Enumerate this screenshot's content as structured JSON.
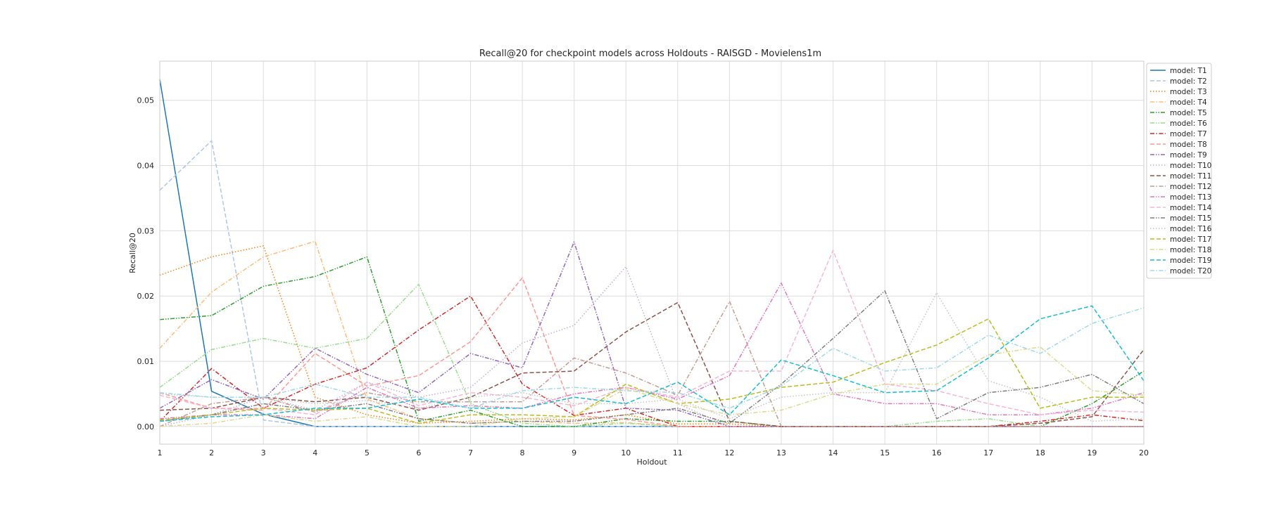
{
  "chart_data": {
    "type": "line",
    "title": "Recall@20 for checkpoint models across Holdouts - RAISGD - Movielens1m",
    "xlabel": "Holdout",
    "ylabel": "Recall@20",
    "x": [
      1,
      2,
      3,
      4,
      5,
      6,
      7,
      8,
      9,
      10,
      11,
      12,
      13,
      14,
      15,
      16,
      17,
      18,
      19,
      20
    ],
    "xlim": [
      1,
      20
    ],
    "ylim": [
      -0.0027,
      0.056
    ],
    "yticks": [
      0.0,
      0.01,
      0.02,
      0.03,
      0.04,
      0.05
    ],
    "ytick_labels": [
      "0.00",
      "0.01",
      "0.02",
      "0.03",
      "0.04",
      "0.05"
    ],
    "xtick_labels": [
      "1",
      "2",
      "3",
      "4",
      "5",
      "6",
      "7",
      "8",
      "9",
      "10",
      "11",
      "12",
      "13",
      "14",
      "15",
      "16",
      "17",
      "18",
      "19",
      "20"
    ],
    "grid": true,
    "legend_position": "outside-right-top",
    "series": [
      {
        "name": "model: T1",
        "color": "#1f77b4",
        "dash": "solid",
        "values": [
          0.0532,
          0.0054,
          0.0019,
          0.0,
          0.0,
          0.0,
          0.0,
          0.0,
          0.0,
          0.0,
          0.0,
          0.0,
          0.0,
          0.0,
          0.0,
          0.0,
          0.0,
          0.0,
          0.0,
          0.0
        ]
      },
      {
        "name": "model: T2",
        "color": "#aec7e8",
        "dash": "dashed",
        "values": [
          0.0362,
          0.0438,
          0.001,
          0.0,
          0.0,
          0.0,
          0.0,
          0.0,
          0.0,
          0.0,
          0.0,
          0.0,
          0.0,
          0.0,
          0.0,
          0.0,
          0.0,
          0.0,
          0.0,
          0.0
        ]
      },
      {
        "name": "model: T3",
        "color": "#ff7f0e",
        "dash": "dotted",
        "values": [
          0.0232,
          0.026,
          0.0277,
          0.0045,
          0.0018,
          0.0005,
          0.0008,
          0.0012,
          0.001,
          0.0018,
          0.0004,
          0.0004,
          0.0,
          0.0,
          0.0,
          0.0,
          0.0,
          0.0,
          0.0,
          0.0
        ]
      },
      {
        "name": "model: T4",
        "color": "#ffbb78",
        "dash": "dashdot",
        "values": [
          0.012,
          0.0206,
          0.026,
          0.0284,
          0.0042,
          0.0012,
          0.0005,
          0.0008,
          0.0005,
          0.0006,
          0.0,
          0.0,
          0.0,
          0.0,
          0.0,
          0.0,
          0.0,
          0.0,
          0.0,
          0.0
        ]
      },
      {
        "name": "model: T5",
        "color": "#2ca02c",
        "dash": "dashdotdot",
        "values": [
          0.0164,
          0.017,
          0.0215,
          0.023,
          0.026,
          0.0008,
          0.0025,
          0.0,
          0.0,
          0.0012,
          0.0008,
          0.0008,
          0.0,
          0.0,
          0.0,
          0.0,
          0.0,
          0.0,
          0.0035,
          0.0085
        ]
      },
      {
        "name": "model: T6",
        "color": "#98df8a",
        "dash": "dashdotdot",
        "values": [
          0.006,
          0.0118,
          0.0135,
          0.012,
          0.0135,
          0.0218,
          0.0035,
          0.0005,
          0.0,
          0.0005,
          0.0,
          0.0,
          0.0,
          0.0,
          0.0,
          0.0008,
          0.0012,
          0.0,
          0.0,
          0.0
        ]
      },
      {
        "name": "model: T7",
        "color": "#d62728",
        "dash": "dashdot",
        "values": [
          0.0008,
          0.0089,
          0.0028,
          0.0065,
          0.009,
          0.0148,
          0.02,
          0.0065,
          0.0017,
          0.0028,
          0.0,
          0.0,
          0.0,
          0.0,
          0.0,
          0.0,
          0.0,
          0.0008,
          0.0018,
          0.0009
        ]
      },
      {
        "name": "model: T8",
        "color": "#ff9896",
        "dash": "dashed",
        "values": [
          0.0052,
          0.0028,
          0.0025,
          0.0112,
          0.0062,
          0.0078,
          0.013,
          0.0228,
          0.0017,
          0.0011,
          0.0,
          0.0,
          0.0,
          0.0,
          0.0,
          0.0,
          0.0,
          0.0,
          0.0,
          0.0
        ]
      },
      {
        "name": "model: T9",
        "color": "#9467bd",
        "dash": "dashdotdot",
        "values": [
          0.0028,
          0.0072,
          0.0042,
          0.012,
          0.008,
          0.0052,
          0.0112,
          0.009,
          0.0283,
          0.0028,
          0.0025,
          0.0,
          0.0,
          0.0,
          0.0,
          0.0,
          0.0,
          0.0,
          0.0,
          0.0
        ]
      },
      {
        "name": "model: T10",
        "color": "#c5b0d5",
        "dash": "dotted",
        "values": [
          0.0,
          0.0018,
          0.0045,
          0.0025,
          0.0068,
          0.0045,
          0.006,
          0.0128,
          0.0155,
          0.0245,
          0.0035,
          0.0,
          0.0,
          0.0,
          0.0,
          0.0,
          0.0,
          0.0,
          0.0,
          0.0
        ]
      },
      {
        "name": "model: T11",
        "color": "#8c564b",
        "dash": "dashed",
        "values": [
          0.0025,
          0.0028,
          0.0045,
          0.0038,
          0.0045,
          0.0025,
          0.0045,
          0.0082,
          0.0085,
          0.0145,
          0.019,
          0.0008,
          0.0,
          0.0,
          0.0,
          0.0,
          0.0,
          0.0005,
          0.0015,
          0.0118
        ]
      },
      {
        "name": "model: T12",
        "color": "#c49c94",
        "dash": "dashdot",
        "values": [
          0.0,
          0.0035,
          0.0045,
          0.0022,
          0.0052,
          0.0038,
          0.0038,
          0.0038,
          0.0105,
          0.0082,
          0.0048,
          0.0192,
          0.0,
          0.0,
          0.0,
          0.0,
          0.0,
          0.0,
          0.0,
          0.0
        ]
      },
      {
        "name": "model: T13",
        "color": "#e377c2",
        "dash": "dashdotdot",
        "values": [
          0.0012,
          0.0018,
          0.0018,
          0.0012,
          0.006,
          0.0028,
          0.0032,
          0.0028,
          0.005,
          0.006,
          0.0042,
          0.0078,
          0.022,
          0.005,
          0.0035,
          0.0035,
          0.0018,
          0.0018,
          0.0028,
          0.0052
        ]
      },
      {
        "name": "model: T14",
        "color": "#f7b6d2",
        "dash": "dashed",
        "values": [
          0.0048,
          0.0028,
          0.0028,
          0.0018,
          0.0068,
          0.0032,
          0.0052,
          0.0045,
          0.0032,
          0.006,
          0.0045,
          0.0085,
          0.0085,
          0.027,
          0.0065,
          0.0055,
          0.0035,
          0.0018,
          0.0025,
          0.0022
        ]
      },
      {
        "name": "model: T15",
        "color": "#7f7f7f",
        "dash": "dashdotdot",
        "values": [
          0.0008,
          0.0018,
          0.0035,
          0.0025,
          0.0035,
          0.0012,
          0.0005,
          0.0008,
          0.0008,
          0.0018,
          0.0028,
          0.0005,
          0.0065,
          0.0135,
          0.0208,
          0.0012,
          0.0052,
          0.006,
          0.008,
          0.0035
        ]
      },
      {
        "name": "model: T16",
        "color": "#c7c7c7",
        "dash": "dotted",
        "values": [
          0.005,
          0.0045,
          0.0045,
          0.0035,
          0.004,
          0.0028,
          0.0045,
          0.0052,
          0.0035,
          0.0035,
          0.0042,
          0.0012,
          0.0045,
          0.0052,
          0.0052,
          0.0205,
          0.007,
          0.0045,
          0.0008,
          0.0012
        ]
      },
      {
        "name": "model: T17",
        "color": "#bcbd22",
        "dash": "dashed",
        "values": [
          0.001,
          0.0018,
          0.0028,
          0.0025,
          0.0028,
          0.0005,
          0.0018,
          0.0018,
          0.0015,
          0.0065,
          0.0035,
          0.0042,
          0.006,
          0.0068,
          0.0098,
          0.0125,
          0.0165,
          0.0028,
          0.0045,
          0.0045
        ]
      },
      {
        "name": "model: T18",
        "color": "#dbdb8d",
        "dash": "dashdot",
        "values": [
          0.0,
          0.0005,
          0.0018,
          0.0008,
          0.0015,
          0.0,
          0.0,
          0.0012,
          0.0015,
          0.0058,
          0.0035,
          0.0018,
          0.0025,
          0.005,
          0.0065,
          0.0065,
          0.011,
          0.0122,
          0.0055,
          0.0048
        ]
      },
      {
        "name": "model: T19",
        "color": "#17becf",
        "dash": "dashed",
        "values": [
          0.0008,
          0.0015,
          0.0018,
          0.0028,
          0.0028,
          0.0042,
          0.0028,
          0.0028,
          0.0045,
          0.0035,
          0.0068,
          0.0018,
          0.0102,
          0.0078,
          0.0052,
          0.0055,
          0.0105,
          0.0165,
          0.0185,
          0.007
        ]
      },
      {
        "name": "model: T20",
        "color": "#9edae5",
        "dash": "dashdot",
        "values": [
          0.0052,
          0.0045,
          0.0045,
          0.0065,
          0.0045,
          0.0045,
          0.0028,
          0.0055,
          0.006,
          0.0055,
          0.0052,
          0.0028,
          0.0062,
          0.012,
          0.0085,
          0.009,
          0.014,
          0.0112,
          0.0158,
          0.0182
        ]
      }
    ]
  }
}
